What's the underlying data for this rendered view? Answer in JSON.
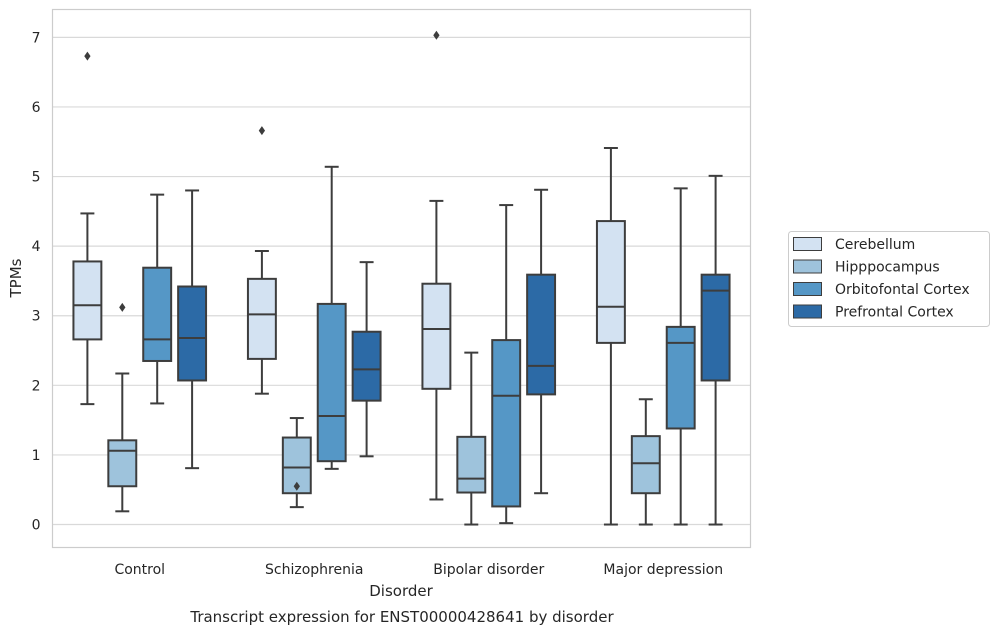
{
  "chart_data": {
    "type": "box",
    "caption": "Transcript expression for ENST00000428641 by disorder",
    "xlabel": "Disorder",
    "ylabel": "TPMs",
    "categories": [
      "Control",
      "Schizophrenia",
      "Bipolar disorder",
      "Major depression"
    ],
    "ylim": [
      -0.33,
      7.4
    ],
    "yticks": [
      0,
      1,
      2,
      3,
      4,
      5,
      6,
      7
    ],
    "grid": "horizontal",
    "legend_position": "right",
    "series": [
      {
        "name": "Cerebellum",
        "color": "#d3e2f2",
        "boxes": [
          {
            "min": 1.73,
            "q1": 2.66,
            "median": 3.15,
            "q3": 3.78,
            "max": 4.47,
            "outliers": [
              6.73
            ]
          },
          {
            "min": 1.88,
            "q1": 2.38,
            "median": 3.02,
            "q3": 3.53,
            "max": 3.93,
            "outliers": [
              5.66
            ]
          },
          {
            "min": 0.36,
            "q1": 1.95,
            "median": 2.81,
            "q3": 3.46,
            "max": 4.65,
            "outliers": [
              7.03
            ]
          },
          {
            "min": 0.0,
            "q1": 2.61,
            "median": 3.13,
            "q3": 4.36,
            "max": 5.41,
            "outliers": []
          }
        ]
      },
      {
        "name": "Hipppocampus",
        "color": "#9ec3dc",
        "boxes": [
          {
            "min": 0.19,
            "q1": 0.55,
            "median": 1.06,
            "q3": 1.21,
            "max": 2.17,
            "outliers": [
              3.12
            ]
          },
          {
            "min": 0.25,
            "q1": 0.45,
            "median": 0.82,
            "q3": 1.25,
            "max": 1.53,
            "outliers": [
              0.55
            ]
          },
          {
            "min": 0.0,
            "q1": 0.46,
            "median": 0.66,
            "q3": 1.26,
            "max": 2.47,
            "outliers": []
          },
          {
            "min": 0.0,
            "q1": 0.45,
            "median": 0.88,
            "q3": 1.27,
            "max": 1.8,
            "outliers": []
          }
        ]
      },
      {
        "name": "Orbitofontal Cortex",
        "color": "#5597c6",
        "boxes": [
          {
            "min": 1.74,
            "q1": 2.35,
            "median": 2.66,
            "q3": 3.69,
            "max": 4.74,
            "outliers": []
          },
          {
            "min": 0.8,
            "q1": 0.91,
            "median": 1.56,
            "q3": 3.17,
            "max": 5.14,
            "outliers": []
          },
          {
            "min": 0.02,
            "q1": 0.26,
            "median": 1.85,
            "q3": 2.65,
            "max": 4.59,
            "outliers": []
          },
          {
            "min": 0.0,
            "q1": 1.38,
            "median": 2.61,
            "q3": 2.84,
            "max": 4.83,
            "outliers": []
          }
        ]
      },
      {
        "name": "Prefrontal Cortex",
        "color": "#2c6aa6",
        "boxes": [
          {
            "min": 0.81,
            "q1": 2.07,
            "median": 2.68,
            "q3": 3.42,
            "max": 4.8,
            "outliers": []
          },
          {
            "min": 0.98,
            "q1": 1.78,
            "median": 2.23,
            "q3": 2.77,
            "max": 3.77,
            "outliers": []
          },
          {
            "min": 0.45,
            "q1": 1.87,
            "median": 2.28,
            "q3": 3.59,
            "max": 4.81,
            "outliers": []
          },
          {
            "min": 0.0,
            "q1": 2.07,
            "median": 3.36,
            "q3": 3.59,
            "max": 5.01,
            "outliers": []
          }
        ]
      }
    ]
  }
}
